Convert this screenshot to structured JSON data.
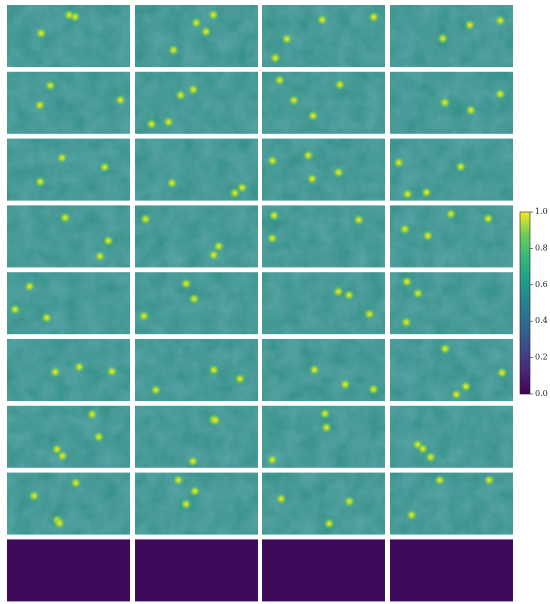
{
  "chart_data": {
    "type": "heatmap",
    "colormap": "viridis",
    "clim": [
      0,
      1
    ],
    "colorbar_ticks": [
      {
        "value": 0,
        "label": "0.0"
      },
      {
        "value": 0.2,
        "label": "0.2"
      },
      {
        "value": 0.4,
        "label": "0.4"
      },
      {
        "value": 0.6,
        "label": "0.6"
      },
      {
        "value": 0.8,
        "label": "0.8"
      },
      {
        "value": 1,
        "label": "1.0"
      }
    ]
  }
}
